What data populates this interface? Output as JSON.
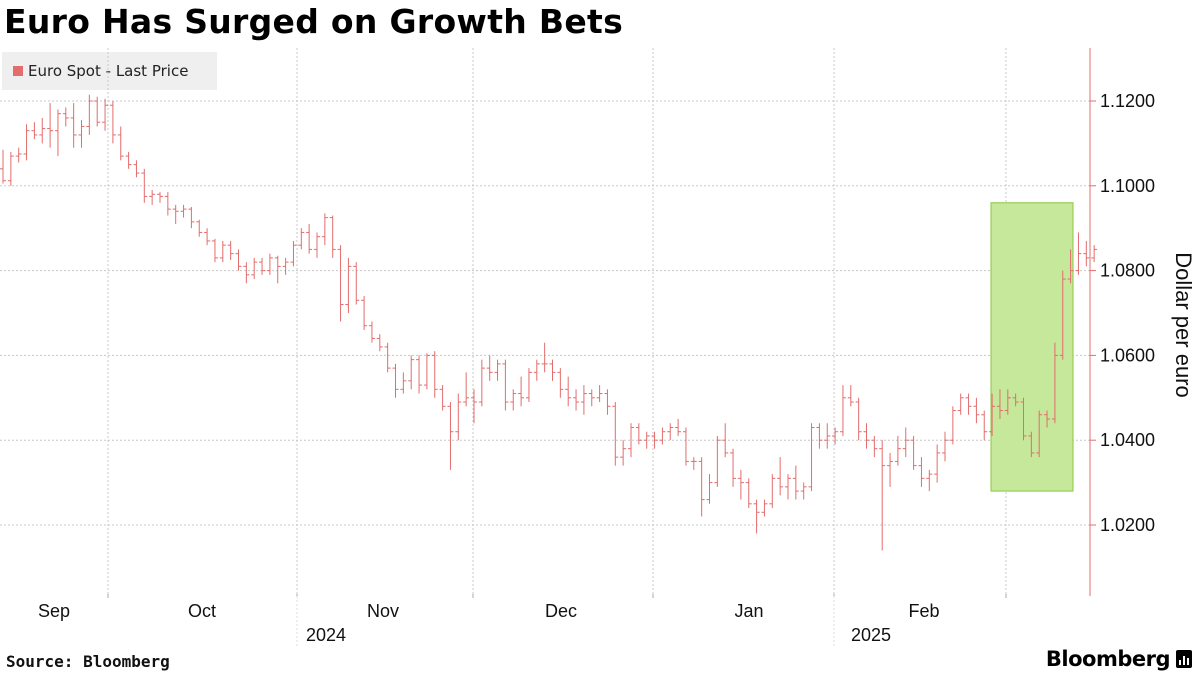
{
  "chart_data": {
    "type": "ohlc",
    "title": "Euro Has Surged on Growth Bets",
    "legend": [
      "Euro Spot - Last Price"
    ],
    "series_color": "#e36c6c",
    "highlight_color": "#c5e89a",
    "highlight_border": "#8cc63f",
    "ylabel": "Dollar per euro",
    "ylim": [
      1.003,
      1.133
    ],
    "yticks": [
      1.02,
      1.04,
      1.06,
      1.08,
      1.1,
      1.12
    ],
    "ytick_labels": [
      "1.0200",
      "1.0400",
      "1.0600",
      "1.0800",
      "1.1000",
      "1.1200"
    ],
    "x_month_labels": [
      "Sep",
      "Oct",
      "Nov",
      "Dec",
      "Jan",
      "Feb"
    ],
    "x_year_labels": [
      "2024",
      "2025"
    ],
    "highlight_range": {
      "from_bar": 123,
      "to_bar": 133,
      "y_range": [
        1.028,
        1.096
      ]
    },
    "bars": [
      [
        1.104,
        1.1085,
        1.1005,
        1.1012
      ],
      [
        1.1012,
        1.108,
        1.1,
        1.107
      ],
      [
        1.107,
        1.109,
        1.1055,
        1.1075
      ],
      [
        1.1075,
        1.1145,
        1.106,
        1.113
      ],
      [
        1.113,
        1.115,
        1.111,
        1.112
      ],
      [
        1.112,
        1.116,
        1.11,
        1.1135
      ],
      [
        1.1135,
        1.1195,
        1.109,
        1.113
      ],
      [
        1.113,
        1.118,
        1.107,
        1.117
      ],
      [
        1.117,
        1.1185,
        1.114,
        1.116
      ],
      [
        1.116,
        1.1195,
        1.109,
        1.112
      ],
      [
        1.112,
        1.1155,
        1.109,
        1.114
      ],
      [
        1.114,
        1.1215,
        1.112,
        1.12
      ],
      [
        1.12,
        1.121,
        1.114,
        1.115
      ],
      [
        1.115,
        1.1205,
        1.113,
        1.119
      ],
      [
        1.119,
        1.12,
        1.11,
        1.112
      ],
      [
        1.112,
        1.114,
        1.106,
        1.107
      ],
      [
        1.107,
        1.108,
        1.104,
        1.105
      ],
      [
        1.105,
        1.106,
        1.102,
        1.103
      ],
      [
        1.103,
        1.104,
        1.096,
        1.0975
      ],
      [
        1.0975,
        1.099,
        1.0955,
        1.098
      ],
      [
        1.098,
        1.0985,
        1.096,
        1.0975
      ],
      [
        1.0975,
        1.0985,
        1.093,
        1.0945
      ],
      [
        1.0945,
        1.0955,
        1.091,
        1.094
      ],
      [
        1.094,
        1.0955,
        1.0925,
        1.0945
      ],
      [
        1.0945,
        1.095,
        1.09,
        1.0915
      ],
      [
        1.0915,
        1.092,
        1.088,
        1.089
      ],
      [
        1.089,
        1.09,
        1.086,
        1.087
      ],
      [
        1.087,
        1.0875,
        1.082,
        1.083
      ],
      [
        1.083,
        1.087,
        1.082,
        1.086
      ],
      [
        1.086,
        1.087,
        1.0825,
        1.084
      ],
      [
        1.084,
        1.085,
        1.08,
        1.081
      ],
      [
        1.081,
        1.082,
        1.077,
        1.079
      ],
      [
        1.079,
        1.083,
        1.078,
        1.082
      ],
      [
        1.082,
        1.083,
        1.079,
        1.08
      ],
      [
        1.08,
        1.084,
        1.079,
        1.083
      ],
      [
        1.083,
        1.0835,
        1.077,
        1.081
      ],
      [
        1.081,
        1.083,
        1.079,
        1.082
      ],
      [
        1.082,
        1.087,
        1.081,
        1.086
      ],
      [
        1.086,
        1.09,
        1.085,
        1.089
      ],
      [
        1.089,
        1.091,
        1.084,
        1.085
      ],
      [
        1.085,
        1.089,
        1.083,
        1.088
      ],
      [
        1.088,
        1.0935,
        1.086,
        1.0925
      ],
      [
        1.0925,
        1.093,
        1.083,
        1.085
      ],
      [
        1.085,
        1.086,
        1.068,
        1.072
      ],
      [
        1.072,
        1.083,
        1.07,
        1.081
      ],
      [
        1.081,
        1.082,
        1.072,
        1.073
      ],
      [
        1.073,
        1.074,
        1.066,
        1.067
      ],
      [
        1.067,
        1.068,
        1.063,
        1.064
      ],
      [
        1.064,
        1.065,
        1.061,
        1.062
      ],
      [
        1.062,
        1.063,
        1.056,
        1.057
      ],
      [
        1.057,
        1.058,
        1.05,
        1.052
      ],
      [
        1.052,
        1.056,
        1.051,
        1.054
      ],
      [
        1.054,
        1.06,
        1.052,
        1.059
      ],
      [
        1.059,
        1.06,
        1.051,
        1.053
      ],
      [
        1.053,
        1.0605,
        1.052,
        1.06
      ],
      [
        1.06,
        1.061,
        1.05,
        1.052
      ],
      [
        1.052,
        1.053,
        1.047,
        1.048
      ],
      [
        1.048,
        1.049,
        1.033,
        1.042
      ],
      [
        1.042,
        1.051,
        1.04,
        1.049
      ],
      [
        1.049,
        1.056,
        1.048,
        1.05
      ],
      [
        1.05,
        1.052,
        1.044,
        1.049
      ],
      [
        1.049,
        1.059,
        1.048,
        1.057
      ],
      [
        1.057,
        1.06,
        1.054,
        1.056
      ],
      [
        1.056,
        1.059,
        1.054,
        1.058
      ],
      [
        1.058,
        1.059,
        1.047,
        1.049
      ],
      [
        1.049,
        1.052,
        1.047,
        1.051
      ],
      [
        1.051,
        1.055,
        1.048,
        1.05
      ],
      [
        1.05,
        1.057,
        1.049,
        1.056
      ],
      [
        1.056,
        1.059,
        1.054,
        1.058
      ],
      [
        1.058,
        1.063,
        1.056,
        1.058
      ],
      [
        1.058,
        1.059,
        1.054,
        1.056
      ],
      [
        1.056,
        1.057,
        1.05,
        1.052
      ],
      [
        1.052,
        1.055,
        1.048,
        1.05
      ],
      [
        1.05,
        1.052,
        1.047,
        1.049
      ],
      [
        1.049,
        1.053,
        1.046,
        1.051
      ],
      [
        1.051,
        1.052,
        1.048,
        1.05
      ],
      [
        1.05,
        1.053,
        1.049,
        1.051
      ],
      [
        1.051,
        1.052,
        1.046,
        1.048
      ],
      [
        1.048,
        1.049,
        1.034,
        1.036
      ],
      [
        1.036,
        1.04,
        1.034,
        1.038
      ],
      [
        1.038,
        1.044,
        1.036,
        1.043
      ],
      [
        1.043,
        1.044,
        1.039,
        1.04
      ],
      [
        1.04,
        1.042,
        1.038,
        1.041
      ],
      [
        1.041,
        1.042,
        1.038,
        1.04
      ],
      [
        1.04,
        1.043,
        1.039,
        1.042
      ],
      [
        1.042,
        1.044,
        1.04,
        1.043
      ],
      [
        1.043,
        1.045,
        1.041,
        1.042
      ],
      [
        1.042,
        1.043,
        1.034,
        1.035
      ],
      [
        1.035,
        1.036,
        1.033,
        1.035
      ],
      [
        1.035,
        1.036,
        1.022,
        1.026
      ],
      [
        1.026,
        1.032,
        1.025,
        1.03
      ],
      [
        1.03,
        1.041,
        1.029,
        1.04
      ],
      [
        1.04,
        1.044,
        1.036,
        1.037
      ],
      [
        1.037,
        1.038,
        1.029,
        1.031
      ],
      [
        1.031,
        1.033,
        1.026,
        1.03
      ],
      [
        1.03,
        1.031,
        1.024,
        1.025
      ],
      [
        1.025,
        1.026,
        1.018,
        1.023
      ],
      [
        1.023,
        1.026,
        1.022,
        1.025
      ],
      [
        1.025,
        1.032,
        1.024,
        1.031
      ],
      [
        1.031,
        1.036,
        1.027,
        1.029
      ],
      [
        1.029,
        1.032,
        1.026,
        1.031
      ],
      [
        1.031,
        1.034,
        1.026,
        1.028
      ],
      [
        1.028,
        1.03,
        1.026,
        1.029
      ],
      [
        1.029,
        1.044,
        1.028,
        1.043
      ],
      [
        1.043,
        1.044,
        1.038,
        1.04
      ],
      [
        1.04,
        1.044,
        1.038,
        1.041
      ],
      [
        1.041,
        1.043,
        1.039,
        1.042
      ],
      [
        1.042,
        1.053,
        1.041,
        1.05
      ],
      [
        1.05,
        1.053,
        1.048,
        1.049
      ],
      [
        1.049,
        1.05,
        1.04,
        1.042
      ],
      [
        1.042,
        1.044,
        1.038,
        1.04
      ],
      [
        1.04,
        1.041,
        1.036,
        1.038
      ],
      [
        1.038,
        1.04,
        1.014,
        1.034
      ],
      [
        1.034,
        1.037,
        1.029,
        1.035
      ],
      [
        1.035,
        1.041,
        1.034,
        1.038
      ],
      [
        1.038,
        1.043,
        1.036,
        1.04
      ],
      [
        1.04,
        1.041,
        1.033,
        1.034
      ],
      [
        1.034,
        1.036,
        1.029,
        1.031
      ],
      [
        1.031,
        1.033,
        1.028,
        1.032
      ],
      [
        1.032,
        1.039,
        1.03,
        1.037
      ],
      [
        1.037,
        1.042,
        1.035,
        1.04
      ],
      [
        1.04,
        1.048,
        1.039,
        1.047
      ],
      [
        1.047,
        1.051,
        1.046,
        1.05
      ],
      [
        1.05,
        1.051,
        1.046,
        1.048
      ],
      [
        1.048,
        1.05,
        1.044,
        1.046
      ],
      [
        1.046,
        1.047,
        1.04,
        1.042
      ],
      [
        1.042,
        1.051,
        1.041,
        1.048
      ],
      [
        1.048,
        1.052,
        1.045,
        1.047
      ],
      [
        1.047,
        1.052,
        1.046,
        1.05
      ],
      [
        1.05,
        1.051,
        1.048,
        1.049
      ],
      [
        1.049,
        1.05,
        1.04,
        1.041
      ],
      [
        1.041,
        1.042,
        1.036,
        1.037
      ],
      [
        1.037,
        1.047,
        1.036,
        1.046
      ],
      [
        1.046,
        1.047,
        1.043,
        1.045
      ],
      [
        1.045,
        1.063,
        1.044,
        1.06
      ],
      [
        1.06,
        1.08,
        1.059,
        1.078
      ],
      [
        1.078,
        1.085,
        1.077,
        1.08
      ],
      [
        1.08,
        1.089,
        1.079,
        1.084
      ],
      [
        1.084,
        1.087,
        1.081,
        1.083
      ],
      [
        1.083,
        1.086,
        1.082,
        1.085
      ]
    ]
  },
  "footer": {
    "source": "Source: Bloomberg",
    "brand": "Bloomberg"
  }
}
